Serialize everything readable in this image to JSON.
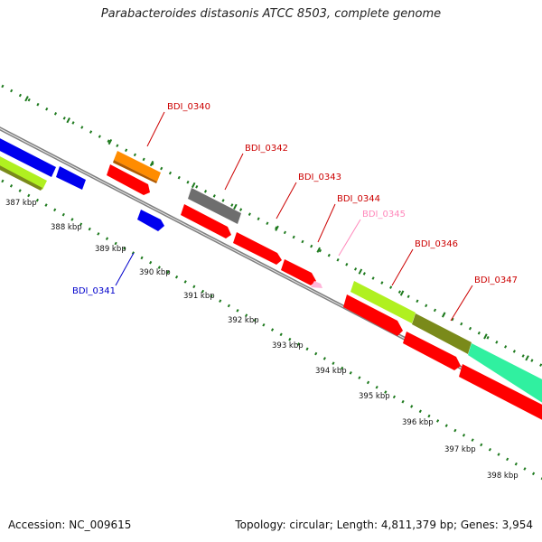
{
  "title": "Parabacteroides distasonis ATCC 8503, complete genome",
  "footer": {
    "accession": "Accession: NC_009615",
    "summary": "Topology: circular; Length: 4,811,379 bp; Genes: 3,954"
  },
  "colors": {
    "backbone": "#808080",
    "tick": "#1e7a1e",
    "red": "#ff0000",
    "orange": "#ff8c00",
    "gray": "#6e6e6e",
    "blue": "#0000ee",
    "pink": "#ffb6d9",
    "lime": "#b0f020",
    "olive": "#7a8a1a",
    "aqua": "#30f0a0"
  },
  "axis_labels": [
    "387 kbp",
    "388 kbp",
    "389 kbp",
    "390 kbp",
    "391 kbp",
    "392 kbp",
    "393 kbp",
    "394 kbp",
    "395 kbp",
    "396 kbp",
    "397 kbp",
    "398 kbp"
  ],
  "gene_labels": [
    {
      "text": "BDI_0340",
      "color": "#cc0000"
    },
    {
      "text": "BDI_0341",
      "color": "#0000cc"
    },
    {
      "text": "BDI_0342",
      "color": "#cc0000"
    },
    {
      "text": "BDI_0343",
      "color": "#cc0000"
    },
    {
      "text": "BDI_0344",
      "color": "#cc0000"
    },
    {
      "text": "BDI_0345",
      "color": "#ff88bb"
    },
    {
      "text": "BDI_0346",
      "color": "#cc0000"
    },
    {
      "text": "BDI_0347",
      "color": "#cc0000"
    }
  ]
}
